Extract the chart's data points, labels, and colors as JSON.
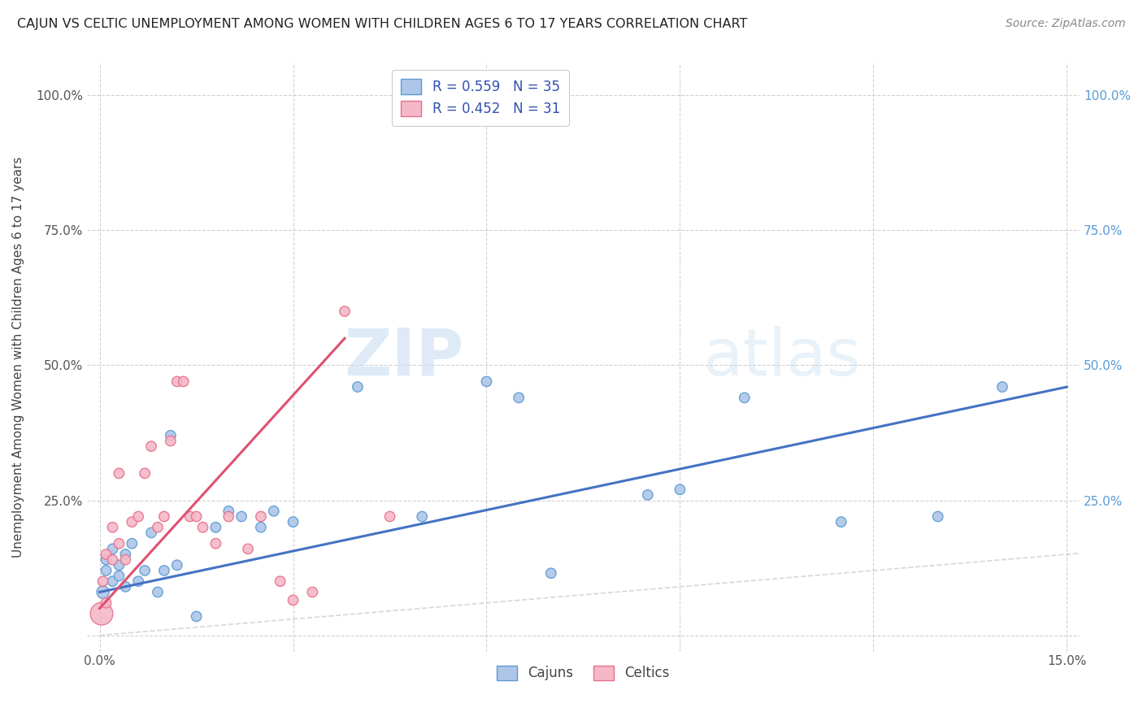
{
  "title": "CAJUN VS CELTIC UNEMPLOYMENT AMONG WOMEN WITH CHILDREN AGES 6 TO 17 YEARS CORRELATION CHART",
  "source": "Source: ZipAtlas.com",
  "ylabel": "Unemployment Among Women with Children Ages 6 to 17 years",
  "xlim": [
    -0.002,
    0.152
  ],
  "ylim": [
    -0.03,
    1.06
  ],
  "xticks": [
    0.0,
    0.03,
    0.06,
    0.09,
    0.12,
    0.15
  ],
  "xticklabels_show": [
    "0.0%",
    "15.0%"
  ],
  "xticklabels_pos": [
    0.0,
    0.15
  ],
  "yticks": [
    0.0,
    0.25,
    0.5,
    0.75,
    1.0
  ],
  "cajun_R": "0.559",
  "cajun_N": "35",
  "celtic_R": "0.452",
  "celtic_N": "31",
  "cajun_color": "#aec6e8",
  "celtic_color": "#f5b8c8",
  "cajun_edge_color": "#5b9bd5",
  "celtic_edge_color": "#e8708a",
  "cajun_line_color": "#4472c4",
  "celtic_line_color": "#e05070",
  "right_tick_color": "#5b9bd5",
  "legend_text_color": "#3050b0",
  "watermark_color": "#d5e8f5",
  "cajun_x": [
    0.0005,
    0.001,
    0.001,
    0.002,
    0.002,
    0.003,
    0.003,
    0.004,
    0.004,
    0.005,
    0.006,
    0.007,
    0.008,
    0.009,
    0.01,
    0.011,
    0.012,
    0.015,
    0.018,
    0.02,
    0.022,
    0.025,
    0.027,
    0.03,
    0.04,
    0.05,
    0.06,
    0.065,
    0.07,
    0.085,
    0.09,
    0.1,
    0.115,
    0.13,
    0.14
  ],
  "cajun_y": [
    0.08,
    0.12,
    0.14,
    0.1,
    0.16,
    0.13,
    0.11,
    0.09,
    0.15,
    0.17,
    0.1,
    0.12,
    0.19,
    0.08,
    0.12,
    0.37,
    0.13,
    0.035,
    0.2,
    0.23,
    0.22,
    0.2,
    0.23,
    0.21,
    0.46,
    0.22,
    0.47,
    0.44,
    0.115,
    0.26,
    0.27,
    0.44,
    0.21,
    0.22,
    0.46
  ],
  "cajun_size": [
    120,
    80,
    80,
    80,
    80,
    80,
    80,
    80,
    80,
    80,
    80,
    80,
    80,
    80,
    80,
    80,
    80,
    80,
    80,
    80,
    80,
    80,
    80,
    80,
    80,
    80,
    80,
    80,
    80,
    80,
    80,
    80,
    80,
    80,
    80
  ],
  "cajun_line_x": [
    0.0,
    0.15
  ],
  "cajun_line_y": [
    0.08,
    0.46
  ],
  "celtic_x": [
    0.0003,
    0.0005,
    0.001,
    0.001,
    0.002,
    0.002,
    0.003,
    0.003,
    0.004,
    0.005,
    0.006,
    0.007,
    0.008,
    0.009,
    0.01,
    0.011,
    0.012,
    0.013,
    0.014,
    0.015,
    0.016,
    0.018,
    0.02,
    0.023,
    0.025,
    0.028,
    0.03,
    0.033,
    0.038,
    0.045,
    0.055
  ],
  "celtic_y": [
    0.04,
    0.1,
    0.06,
    0.15,
    0.14,
    0.2,
    0.17,
    0.3,
    0.14,
    0.21,
    0.22,
    0.3,
    0.35,
    0.2,
    0.22,
    0.36,
    0.47,
    0.47,
    0.22,
    0.22,
    0.2,
    0.17,
    0.22,
    0.16,
    0.22,
    0.1,
    0.065,
    0.08,
    0.6,
    0.22,
    0.96
  ],
  "celtic_size": [
    400,
    80,
    80,
    80,
    80,
    80,
    80,
    80,
    80,
    80,
    80,
    80,
    80,
    80,
    80,
    80,
    80,
    80,
    80,
    80,
    80,
    80,
    80,
    80,
    80,
    80,
    80,
    80,
    80,
    80,
    80
  ],
  "celtic_line_x": [
    0.0,
    0.038
  ],
  "celtic_line_y": [
    0.05,
    0.55
  ]
}
